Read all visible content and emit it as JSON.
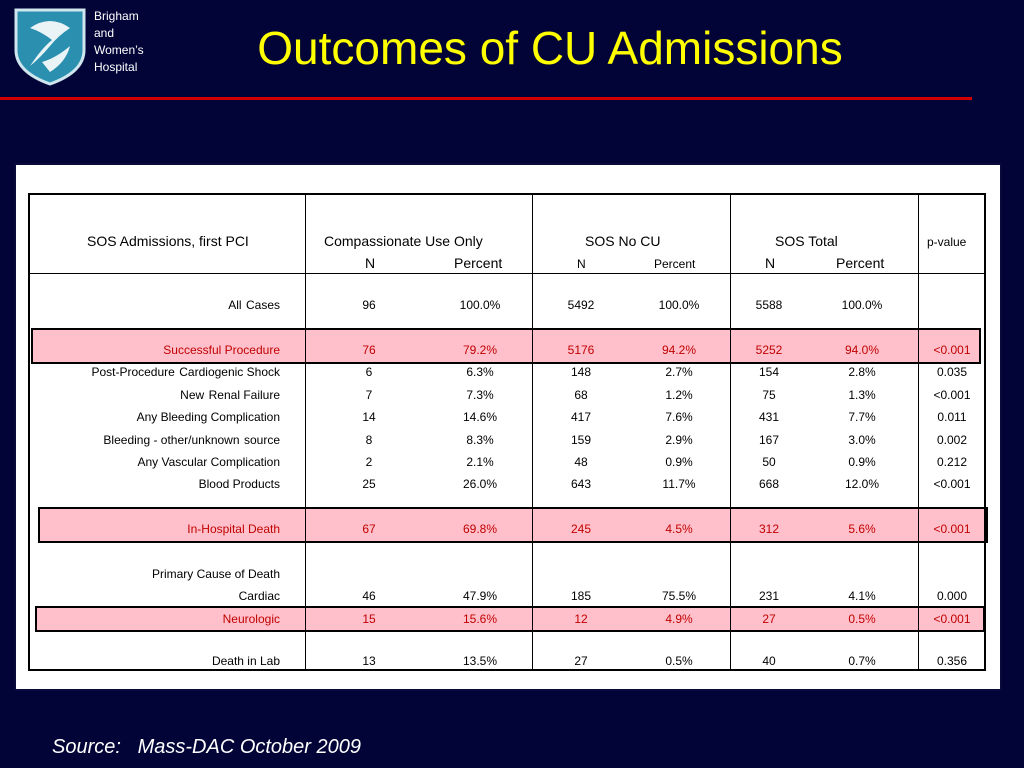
{
  "brand": {
    "line1": "Brigham",
    "line2": "and",
    "line3": "Women’s",
    "line4": "Hospital",
    "colors": {
      "shield": "#2b8fb0",
      "title": "#ffff00",
      "rule": "#d40000",
      "highlight": "#ffc0cb",
      "background": "#020437"
    }
  },
  "title": "Outcomes of CU Admissions",
  "table": {
    "header": {
      "row_label": "SOS Admissions, first PCI",
      "group1": "Compassionate Use Only",
      "group2": "SOS No CU",
      "group3": "SOS Total",
      "pvalue": "p-value",
      "n1": "N",
      "pct1": "Percent",
      "n2": "N",
      "pct2": "Percent",
      "n3": "N",
      "pct3": "Percent"
    },
    "rows": [
      {
        "label": "All",
        "suffix": "Cases",
        "n1": "96",
        "p1": "100.0%",
        "n2": "5492",
        "p2": "100.0%",
        "n3": "5588",
        "p3": "100.0%",
        "pv": ""
      },
      {
        "label": "Successful Procedure",
        "n1": "76",
        "p1": "79.2%",
        "n2": "5176",
        "p2": "94.2%",
        "n3": "5252",
        "p3": "94.0%",
        "pv": "<0.001"
      },
      {
        "prefix": "Post-Procedure",
        "label": "Cardiogenic Shock",
        "n1": "6",
        "p1": "6.3%",
        "n2": "148",
        "p2": "2.7%",
        "n3": "154",
        "p3": "2.8%",
        "pv": "0.035"
      },
      {
        "prefix": "New",
        "label": "Renal Failure",
        "n1": "7",
        "p1": "7.3%",
        "n2": "68",
        "p2": "1.2%",
        "n3": "75",
        "p3": "1.3%",
        "pv": "<0.001"
      },
      {
        "label": "Any Bleeding Complication",
        "n1": "14",
        "p1": "14.6%",
        "n2": "417",
        "p2": "7.6%",
        "n3": "431",
        "p3": "7.7%",
        "pv": "0.011"
      },
      {
        "label": "Bleeding - other/unknown",
        "suffix": "source",
        "n1": "8",
        "p1": "8.3%",
        "n2": "159",
        "p2": "2.9%",
        "n3": "167",
        "p3": "3.0%",
        "pv": "0.002"
      },
      {
        "label": "Any Vascular Complication",
        "n1": "2",
        "p1": "2.1%",
        "n2": "48",
        "p2": "0.9%",
        "n3": "50",
        "p3": "0.9%",
        "pv": "0.212"
      },
      {
        "label": "Blood Products",
        "n1": "25",
        "p1": "26.0%",
        "n2": "643",
        "p2": "11.7%",
        "n3": "668",
        "p3": "12.0%",
        "pv": "<0.001"
      },
      {
        "label": "In-Hospital Death",
        "n1": "67",
        "p1": "69.8%",
        "n2": "245",
        "p2": "4.5%",
        "n3": "312",
        "p3": "5.6%",
        "pv": "<0.001"
      },
      {
        "label": "Primary Cause of Death"
      },
      {
        "label": "Cardiac",
        "n1": "46",
        "p1": "47.9%",
        "n2": "185",
        "p2": "75.5%",
        "n3": "231",
        "p3": "4.1%",
        "pv": "0.000"
      },
      {
        "label": "Neurologic",
        "n1": "15",
        "p1": "15.6%",
        "n2": "12",
        "p2": "4.9%",
        "n3": "27",
        "p3": "0.5%",
        "pv": "<0.001"
      },
      {
        "label": "Death in Lab",
        "n1": "13",
        "p1": "13.5%",
        "n2": "27",
        "p2": "0.5%",
        "n3": "40",
        "p3": "0.7%",
        "pv": "0.356"
      }
    ]
  },
  "source": "Source:   Mass-DAC October 2009"
}
